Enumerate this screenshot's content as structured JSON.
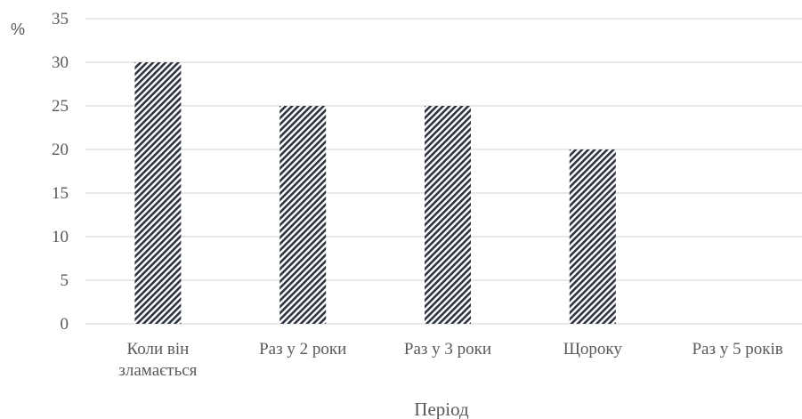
{
  "chart_data": {
    "type": "bar",
    "categories": [
      "Коли він зламається",
      "Раз у 2 роки",
      "Раз у 3 роки",
      "Щороку",
      "Раз у 5 років"
    ],
    "category_lines": [
      [
        "Коли він",
        "зламається"
      ],
      [
        "Раз у 2 роки"
      ],
      [
        "Раз у 3 роки"
      ],
      [
        "Щороку"
      ],
      [
        "Раз у 5 років"
      ]
    ],
    "values": [
      30,
      25,
      25,
      20,
      0
    ],
    "ylim": [
      0,
      35
    ],
    "yticks": [
      0,
      5,
      10,
      15,
      20,
      25,
      30,
      35
    ],
    "xlabel": "Період",
    "ylabel": "%",
    "grid": true,
    "bar_fill": "diagonal-hatch",
    "colors": {
      "bar_hatch": "#2e3440",
      "gridline": "#d9d9d9",
      "text": "#595959"
    }
  }
}
